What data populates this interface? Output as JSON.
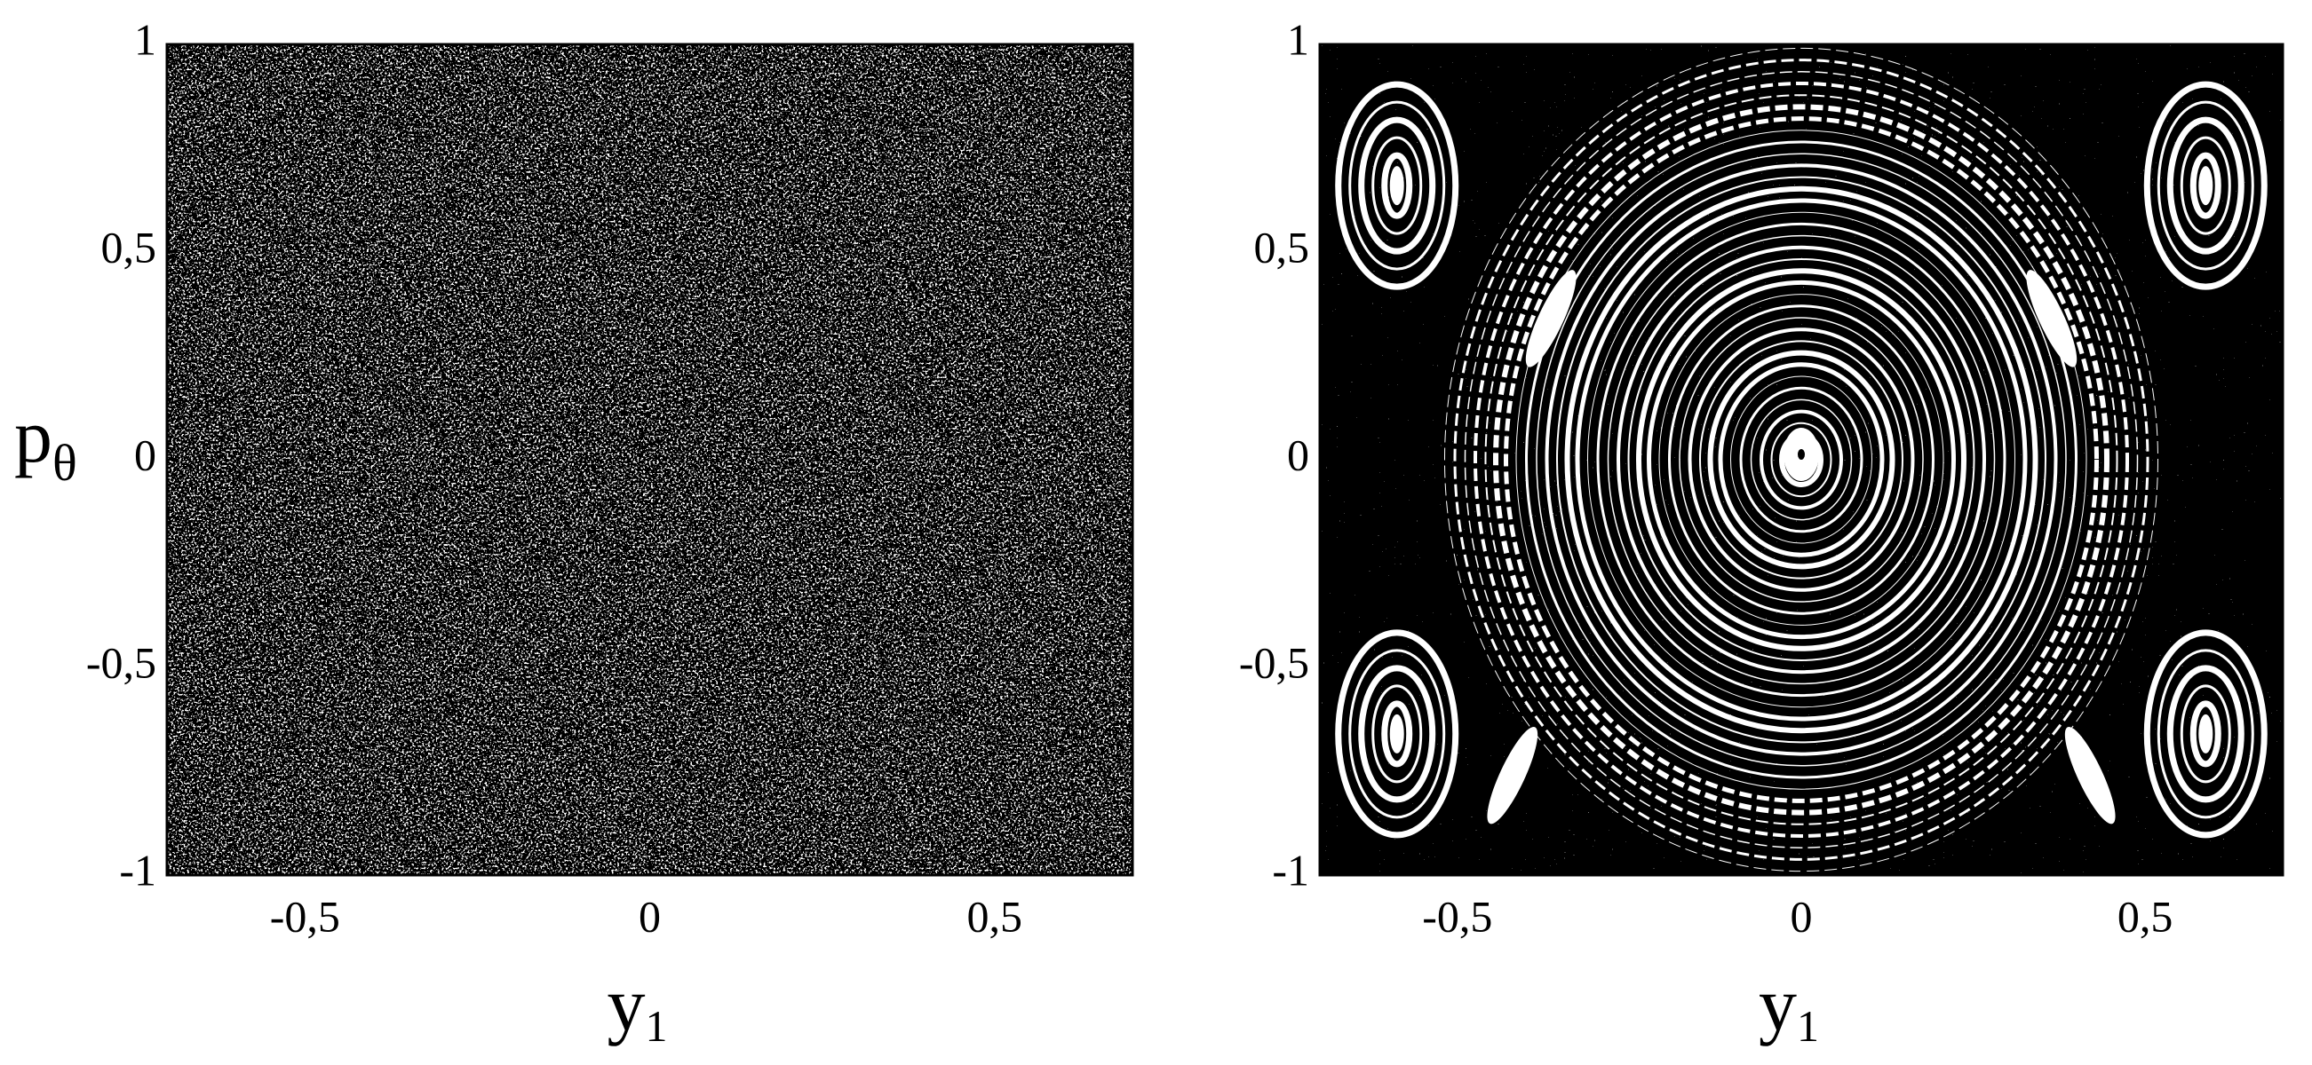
{
  "chart_data": [
    {
      "type": "scatter",
      "xlabel": "y",
      "xlabel_subscript": "1",
      "ylabel": "p",
      "ylabel_subscript": "θ",
      "pattern": "chaotic",
      "xlim": [
        -0.7,
        0.7
      ],
      "ylim": [
        -1,
        1
      ],
      "xticks": [
        {
          "value": -0.5,
          "label": "-0,5"
        },
        0,
        {
          "value": 0.5,
          "label": "0,5"
        }
      ],
      "yticks": [
        -1,
        {
          "value": -0.5,
          "label": "-0,5"
        },
        0,
        {
          "value": 0.5,
          "label": "0,5"
        },
        1
      ]
    },
    {
      "type": "scatter",
      "xlabel": "y",
      "xlabel_subscript": "1",
      "pattern": "regular",
      "xlim": [
        -0.7,
        0.7
      ],
      "ylim": [
        -1,
        1
      ],
      "xticks": [
        {
          "value": -0.5,
          "label": "-0,5"
        },
        0,
        {
          "value": 0.5,
          "label": "0,5"
        }
      ],
      "yticks": [
        -1,
        {
          "value": -0.5,
          "label": "-0,5"
        },
        0,
        {
          "value": 0.5,
          "label": "0,5"
        },
        1
      ]
    }
  ]
}
